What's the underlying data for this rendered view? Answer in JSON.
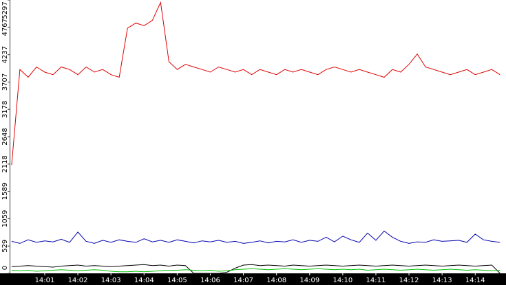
{
  "chart_data": {
    "type": "line",
    "x": [
      0,
      0.25,
      0.5,
      0.75,
      1,
      1.25,
      1.5,
      1.75,
      2,
      2.25,
      2.5,
      2.75,
      3,
      3.25,
      3.5,
      3.75,
      4,
      4.25,
      4.5,
      4.75,
      5,
      5.25,
      5.5,
      5.75,
      6,
      6.25,
      6.5,
      6.75,
      7,
      7.25,
      7.5,
      7.75,
      8,
      8.25,
      8.5,
      8.75,
      9,
      9.25,
      9.5,
      9.75,
      10,
      10.25,
      10.5,
      10.75,
      11,
      11.25,
      11.5,
      11.75,
      12,
      12.25,
      12.5,
      12.75,
      13,
      13.25,
      13.5,
      13.75,
      14,
      14.25,
      14.5,
      14.75
    ],
    "xlim": [
      -0.06,
      14.93
    ],
    "xticks": [
      {
        "value": 1,
        "label": "14:01"
      },
      {
        "value": 2,
        "label": "14:02"
      },
      {
        "value": 3,
        "label": "14:03"
      },
      {
        "value": 4,
        "label": "14:04"
      },
      {
        "value": 5,
        "label": "14:05"
      },
      {
        "value": 6,
        "label": "14:06"
      },
      {
        "value": 7,
        "label": "14:07"
      },
      {
        "value": 8,
        "label": "14:08"
      },
      {
        "value": 9,
        "label": "14:09"
      },
      {
        "value": 10,
        "label": "14:10"
      },
      {
        "value": 11,
        "label": "14:11"
      },
      {
        "value": 12,
        "label": "14:12"
      },
      {
        "value": 13,
        "label": "14:13"
      },
      {
        "value": 14,
        "label": "14:14"
      }
    ],
    "ylim": [
      0,
      5297
    ],
    "yticks": [
      0,
      529,
      1059,
      1589,
      2118,
      2648,
      3178,
      3707,
      4237,
      4767,
      5297
    ],
    "series": [
      {
        "color": "#e00000",
        "values": [
          2100,
          3950,
          3800,
          4000,
          3900,
          3850,
          4000,
          3950,
          3850,
          4000,
          3900,
          3950,
          3850,
          3800,
          4750,
          4850,
          4800,
          4900,
          5250,
          4100,
          3950,
          4050,
          4000,
          3950,
          3900,
          4000,
          3950,
          3900,
          3950,
          3850,
          3950,
          3900,
          3850,
          3950,
          3900,
          3950,
          3900,
          3850,
          3950,
          4000,
          3950,
          3900,
          3950,
          3900,
          3850,
          3800,
          3950,
          3900,
          4050,
          4250,
          4000,
          3950,
          3900,
          3850,
          3900,
          3950,
          3850,
          3900,
          3950,
          3850
        ]
      },
      {
        "color": "#0000b0",
        "values": [
          620,
          580,
          650,
          600,
          630,
          610,
          660,
          600,
          800,
          620,
          580,
          640,
          600,
          650,
          620,
          600,
          670,
          610,
          640,
          600,
          650,
          620,
          590,
          630,
          610,
          640,
          600,
          620,
          580,
          600,
          630,
          590,
          620,
          610,
          650,
          600,
          640,
          620,
          700,
          610,
          720,
          650,
          600,
          780,
          640,
          820,
          700,
          620,
          580,
          610,
          600,
          650,
          620,
          630,
          640,
          600,
          760,
          650,
          620,
          600
        ]
      },
      {
        "color": "#000000",
        "values": [
          130,
          140,
          150,
          140,
          130,
          120,
          140,
          150,
          160,
          140,
          150,
          140,
          130,
          140,
          150,
          160,
          170,
          150,
          160,
          140,
          160,
          150,
          0,
          0,
          0,
          0,
          20,
          100,
          160,
          170,
          150,
          160,
          150,
          140,
          160,
          150,
          140,
          150,
          160,
          150,
          140,
          150,
          160,
          150,
          140,
          150,
          160,
          150,
          140,
          150,
          160,
          150,
          140,
          150,
          160,
          150,
          140,
          150,
          160,
          0
        ]
      },
      {
        "color": "#00c000",
        "values": [
          60,
          50,
          60,
          40,
          50,
          60,
          70,
          60,
          50,
          60,
          70,
          60,
          40,
          30,
          30,
          40,
          30,
          40,
          50,
          60,
          60,
          70,
          60,
          50,
          60,
          40,
          50,
          70,
          80,
          90,
          80,
          70,
          80,
          90,
          80,
          70,
          80,
          90,
          80,
          70,
          80,
          70,
          80,
          60,
          70,
          80,
          70,
          60,
          70,
          80,
          70,
          60,
          70,
          80,
          70,
          60,
          70,
          60,
          50,
          60
        ]
      }
    ]
  }
}
